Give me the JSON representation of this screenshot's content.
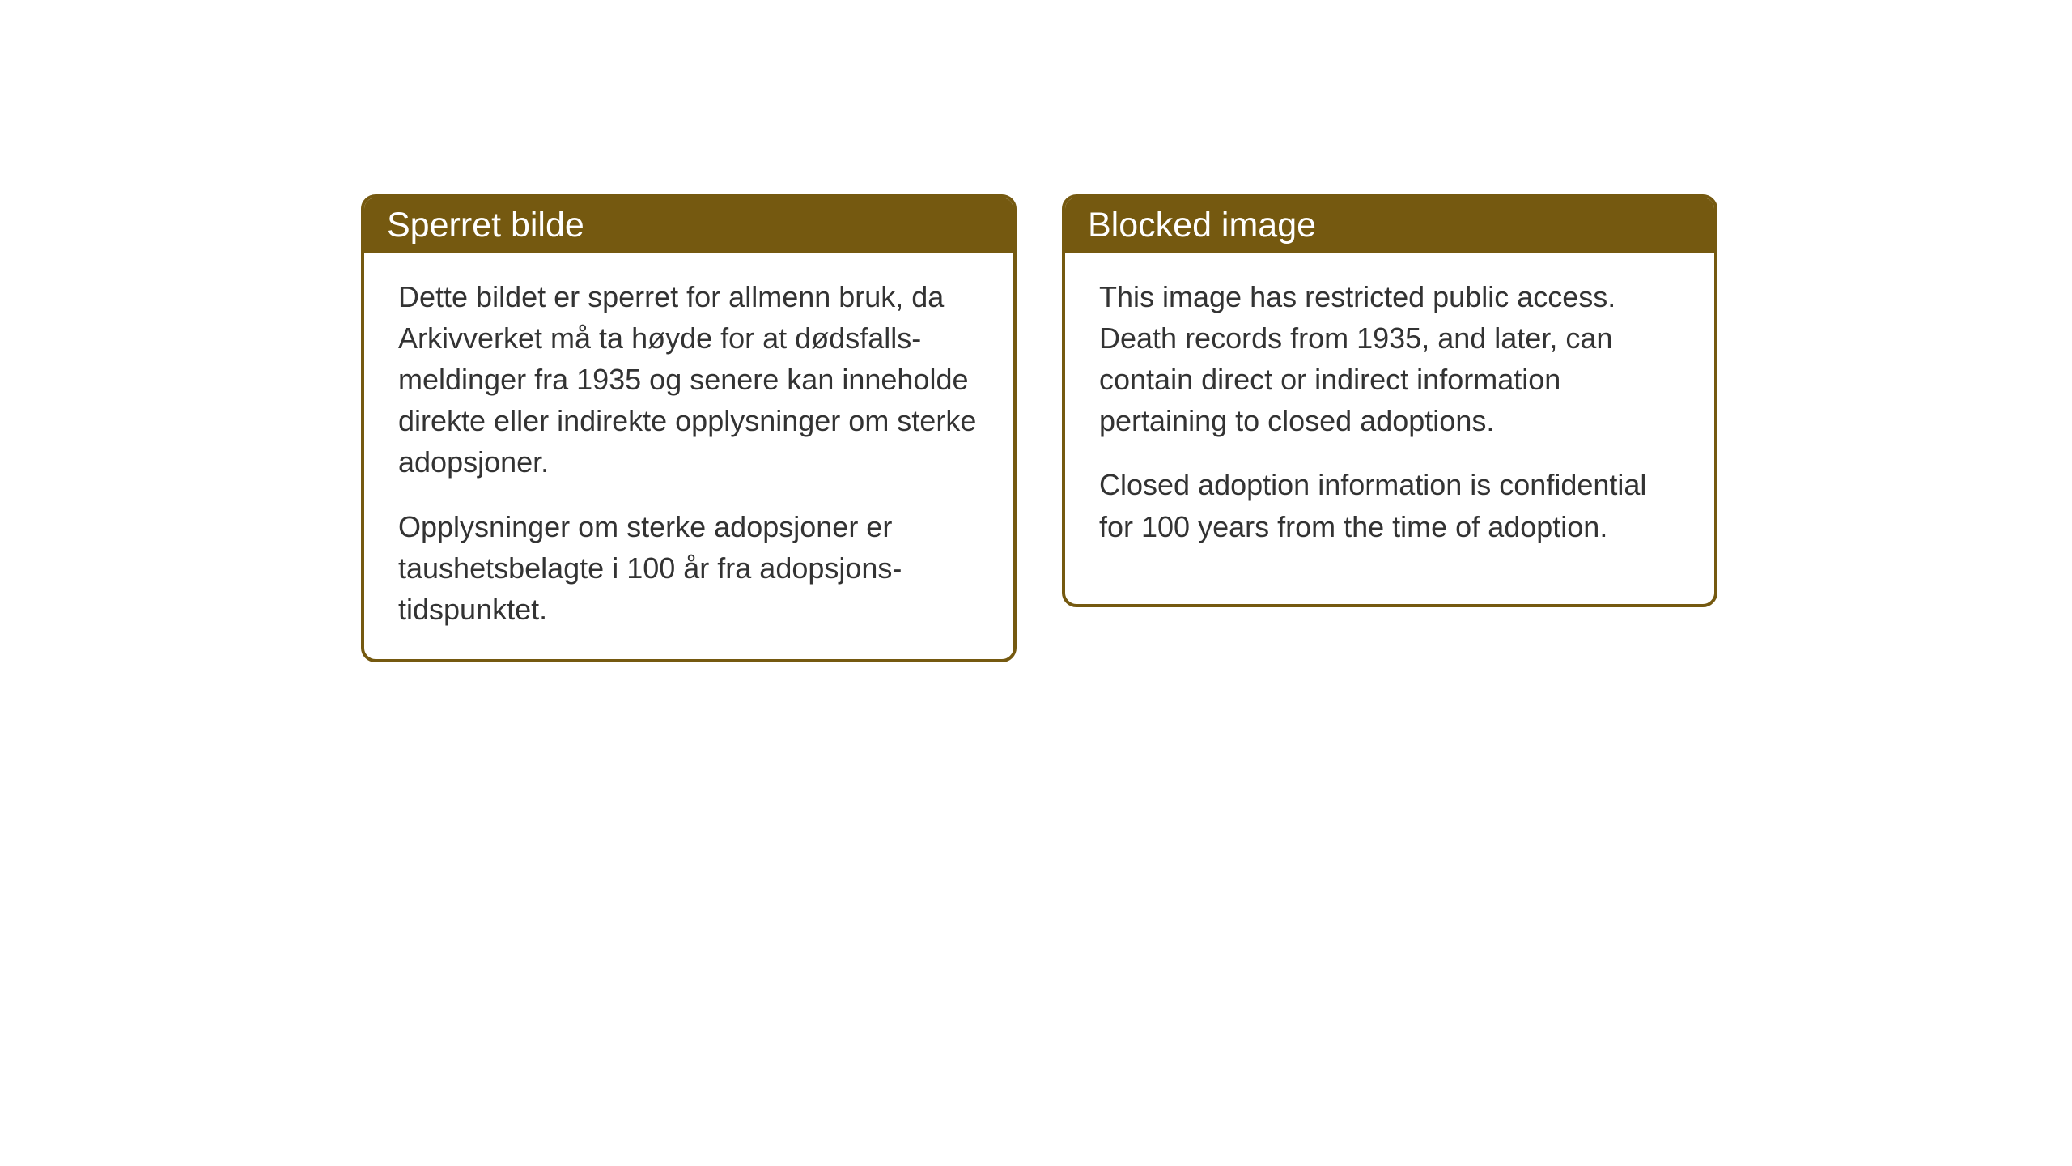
{
  "cards": {
    "norwegian": {
      "title": "Sperret bilde",
      "paragraph1": "Dette bildet er sperret for allmenn bruk, da Arkivverket må ta høyde for at dødsfalls-meldinger fra 1935 og senere kan inneholde direkte eller indirekte opplysninger om sterke adopsjoner.",
      "paragraph2": "Opplysninger om sterke adopsjoner er taushetsbelagte i 100 år fra adopsjons-tidspunktet."
    },
    "english": {
      "title": "Blocked image",
      "paragraph1": "This image has restricted public access. Death records from 1935, and later, can contain direct or indirect information pertaining to closed adoptions.",
      "paragraph2": "Closed adoption information is confidential for 100 years from the time of adoption."
    }
  },
  "styling": {
    "card_border_color": "#755910",
    "card_header_bg": "#755910",
    "card_header_text_color": "#ffffff",
    "card_body_bg": "#ffffff",
    "card_body_text_color": "#333333",
    "page_bg": "#ffffff",
    "header_fontsize": 43,
    "body_fontsize": 36,
    "border_radius": 18,
    "border_width": 4
  }
}
